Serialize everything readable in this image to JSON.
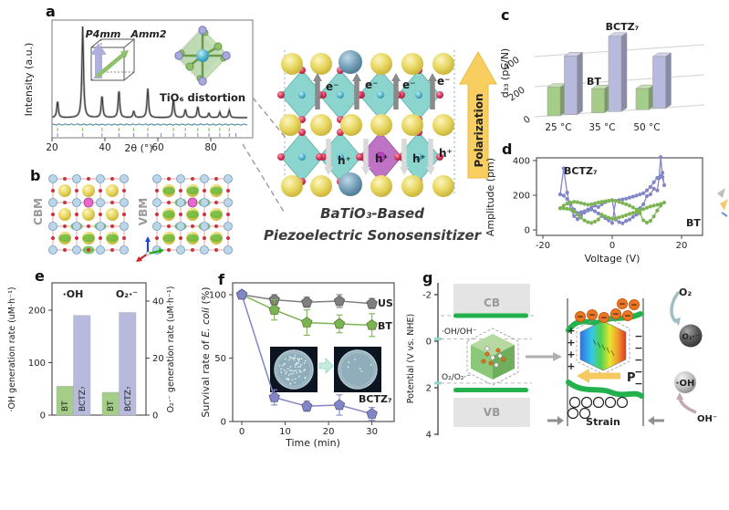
{
  "figure": {
    "background": "#ffffff"
  },
  "panels": {
    "a": {
      "letter": "a",
      "ylabel": "Intensity (a.u.)",
      "xlabel": "2θ (°)",
      "inset_phase1": "P4mm",
      "inset_phase2": "Amm2",
      "inset_octahedron": "TiO₆ distortion",
      "phase1_color": "#8f8fd0",
      "phase2_color": "#7cb854"
    },
    "b": {
      "letter": "b",
      "left_label": "CBM",
      "right_label": "VBM"
    },
    "central": {
      "electron": "e⁻",
      "hole": "h⁺",
      "polarization": "Polarization",
      "caption_line1": "BaTiO₃-Based",
      "caption_line2": "Piezoelectric Sonosensitizer"
    },
    "c": {
      "letter": "c"
    },
    "d": {
      "letter": "d"
    },
    "e": {
      "letter": "e"
    },
    "f": {
      "letter": "f"
    },
    "g": {
      "letter": "g",
      "ylabel": "Potential (V vs. NHE)",
      "yticks": [
        -2,
        0,
        2,
        4
      ],
      "cb_label": "CB",
      "vb_label": "VB",
      "level1_label": "·OH/OH⁻",
      "level2_label": "O₂/O₂·⁻",
      "levels_v": {
        "cb_edge": -1.1,
        "oh_oh": -0.1,
        "o2_o2": 1.8,
        "vb_edge": 2.1
      },
      "strain_label": "Strain",
      "polarization_label": "P",
      "o2_label": "O₂",
      "o2_radical_label": "O₂·⁻",
      "oh_radical_label": "·OH",
      "oh_minus_label": "OH⁻",
      "plus_sign": "+",
      "minus_sign": "−",
      "band_green": "#22b14c",
      "electron_orange": "#ed7622"
    }
  },
  "chart_data": [
    {
      "id": "xrd",
      "type": "line",
      "xlabel": "2θ (°)",
      "ylabel": "Intensity (a.u.)",
      "xticks": [
        20,
        40,
        60,
        80
      ],
      "xlim": [
        20,
        94
      ],
      "curves": [
        "observed",
        "fit",
        "difference",
        "bragg-ticks"
      ],
      "peaks_2theta": [
        22.1,
        31.6,
        38.9,
        45.3,
        50.9,
        56.2,
        65.9,
        70.4,
        75.1,
        79.3,
        83.4,
        87.0
      ],
      "peaks_rel_intensity": [
        0.18,
        1.0,
        0.24,
        0.3,
        0.07,
        0.32,
        0.2,
        0.09,
        0.12,
        0.05,
        0.06,
        0.08
      ],
      "bragg_row1_color": "#8fbf6f",
      "bragg_row2_color": "#8c8fc8",
      "observed_color": "#b8b8b8",
      "fit_color": "#3a3a3a",
      "difference_color": "#3d7f91"
    },
    {
      "id": "d33",
      "type": "bar",
      "ylabel": "d₃₃ (pC/N)",
      "yticks": [
        0,
        200,
        400
      ],
      "categories": [
        "25 °C",
        "35 °C",
        "50 °C"
      ],
      "series": [
        {
          "name": "BT",
          "color": "#a4cd87",
          "label_color": "#7cb854",
          "values": [
            190,
            160,
            140
          ]
        },
        {
          "name": "BCTZ₇",
          "color": "#b7b9dd",
          "label_color": "#8b8dc7",
          "values": [
            390,
            500,
            345
          ]
        }
      ]
    },
    {
      "id": "pfm",
      "type": "line",
      "xlabel": "Voltage (V)",
      "ylabel": "Amplitude (pm)",
      "xticks": [
        -20,
        0,
        20
      ],
      "yticks": [
        0,
        200,
        400
      ],
      "series": [
        {
          "name": "BCTZ₇",
          "color": "#8285c6",
          "label_color": "#8b8dc7",
          "points": [
            [
              -15,
              205
            ],
            [
              -14,
              355
            ],
            [
              -13,
              215
            ],
            [
              -12,
              120
            ],
            [
              -11,
              80
            ],
            [
              -10,
              62
            ],
            [
              -9,
              85
            ],
            [
              -8,
              100
            ],
            [
              -7,
              118
            ],
            [
              -6,
              128
            ],
            [
              -5,
              140
            ],
            [
              -4,
              132
            ],
            [
              -3,
              148
            ],
            [
              -2,
              160
            ],
            [
              -1,
              168
            ],
            [
              0,
              172
            ],
            [
              1,
              60
            ],
            [
              2,
              45
            ],
            [
              3,
              38
            ],
            [
              4,
              52
            ],
            [
              5,
              60
            ],
            [
              6,
              75
            ],
            [
              7,
              88
            ],
            [
              8,
              125
            ],
            [
              9,
              148
            ],
            [
              10,
              195
            ],
            [
              11,
              205
            ],
            [
              12,
              238
            ],
            [
              13,
              228
            ],
            [
              13.5,
              298
            ],
            [
              14,
              420
            ],
            [
              14.5,
              305
            ],
            [
              15,
              258
            ],
            [
              14.5,
              330
            ],
            [
              14,
              310
            ],
            [
              13,
              300
            ],
            [
              12,
              275
            ],
            [
              11,
              248
            ],
            [
              10,
              228
            ],
            [
              9,
              212
            ],
            [
              8,
              205
            ],
            [
              7,
              198
            ],
            [
              6,
              192
            ],
            [
              5,
              186
            ],
            [
              4,
              180
            ],
            [
              3,
              176
            ],
            [
              2,
              172
            ],
            [
              1,
              168
            ],
            [
              0,
              40
            ],
            [
              -1,
              55
            ],
            [
              -2,
              68
            ],
            [
              -3,
              80
            ],
            [
              -4,
              95
            ],
            [
              -5,
              108
            ],
            [
              -6,
              118
            ],
            [
              -7,
              112
            ],
            [
              -8,
              108
            ],
            [
              -9,
              102
            ],
            [
              -10,
              98
            ],
            [
              -11,
              118
            ],
            [
              -12,
              148
            ],
            [
              -13,
              178
            ],
            [
              -14,
              198
            ],
            [
              -15,
              205
            ]
          ]
        },
        {
          "name": "BT",
          "color": "#7db452",
          "label_color": "#7cb854",
          "points": [
            [
              -15,
              125
            ],
            [
              -14,
              140
            ],
            [
              -13,
              152
            ],
            [
              -12,
              158
            ],
            [
              -11,
              162
            ],
            [
              -10,
              160
            ],
            [
              -9,
              155
            ],
            [
              -8,
              150
            ],
            [
              -7,
              145
            ],
            [
              -6,
              148
            ],
            [
              -5,
              152
            ],
            [
              -4,
              158
            ],
            [
              -3,
              162
            ],
            [
              -2,
              165
            ],
            [
              -1,
              168
            ],
            [
              0,
              170
            ],
            [
              1,
              168
            ],
            [
              2,
              162
            ],
            [
              3,
              155
            ],
            [
              4,
              148
            ],
            [
              5,
              140
            ],
            [
              6,
              130
            ],
            [
              7,
              118
            ],
            [
              8,
              95
            ],
            [
              9,
              55
            ],
            [
              10,
              42
            ],
            [
              11,
              52
            ],
            [
              12,
              78
            ],
            [
              13,
              112
            ],
            [
              14,
              140
            ],
            [
              15,
              158
            ],
            [
              14,
              150
            ],
            [
              13,
              145
            ],
            [
              12,
              140
            ],
            [
              11,
              135
            ],
            [
              10,
              128
            ],
            [
              9,
              120
            ],
            [
              8,
              112
            ],
            [
              7,
              105
            ],
            [
              6,
              98
            ],
            [
              5,
              92
            ],
            [
              4,
              85
            ],
            [
              3,
              78
            ],
            [
              2,
              72
            ],
            [
              1,
              68
            ],
            [
              0,
              65
            ],
            [
              -1,
              70
            ],
            [
              -2,
              78
            ],
            [
              -3,
              88
            ],
            [
              -4,
              60
            ],
            [
              -5,
              48
            ],
            [
              -6,
              40
            ],
            [
              -7,
              45
            ],
            [
              -8,
              55
            ],
            [
              -9,
              70
            ],
            [
              -10,
              88
            ],
            [
              -11,
              105
            ],
            [
              -12,
              118
            ],
            [
              -13,
              122
            ],
            [
              -14,
              124
            ],
            [
              -15,
              125
            ]
          ]
        }
      ]
    },
    {
      "id": "ros",
      "type": "bar",
      "left_ylabel": "·OH generation rate (uM·h⁻¹)",
      "right_ylabel": "O₂·⁻ generation rate (uM·h⁻¹)",
      "left_yticks": [
        0,
        100,
        200
      ],
      "right_yticks": [
        0,
        20,
        40
      ],
      "groups": [
        {
          "label": "·OH",
          "axis": "left",
          "bars": [
            {
              "name": "BT",
              "value": 55,
              "color": "#a4cd87"
            },
            {
              "name": "BCTZ₇",
              "value": 190,
              "color": "#b7b9dd"
            }
          ]
        },
        {
          "label": "O₂·⁻",
          "axis": "right",
          "bars": [
            {
              "name": "BT",
              "value": 8,
              "color": "#a4cd87"
            },
            {
              "name": "BCTZ₇",
              "value": 36,
              "color": "#b7b9dd"
            }
          ]
        }
      ]
    },
    {
      "id": "survival",
      "type": "line",
      "xlabel": "Time (min)",
      "ylabel_parts": [
        "Survival rate of ",
        "E. coli",
        " (%)"
      ],
      "xticks": [
        0,
        10,
        20,
        30
      ],
      "yticks": [
        0,
        50,
        100
      ],
      "x": [
        0,
        7.5,
        15,
        22.5,
        30
      ],
      "series": [
        {
          "name": "US",
          "color": "#7f7f7f",
          "values": [
            100,
            96,
            94,
            95,
            93
          ],
          "errors": [
            3,
            4,
            4,
            5,
            4
          ]
        },
        {
          "name": "BT",
          "color": "#7db452",
          "label_color": "#7cb854",
          "values": [
            100,
            88,
            78,
            77,
            76
          ],
          "errors": [
            3,
            8,
            10,
            7,
            9
          ]
        },
        {
          "name": "BCTZ₇",
          "color": "#8285c6",
          "label_color": "#8b8dc7",
          "values": [
            100,
            19,
            12,
            13,
            6
          ],
          "errors": [
            3,
            6,
            4,
            8,
            5
          ]
        }
      ],
      "insets": {
        "left_colonies": 60,
        "right_colonies": 6
      }
    }
  ]
}
